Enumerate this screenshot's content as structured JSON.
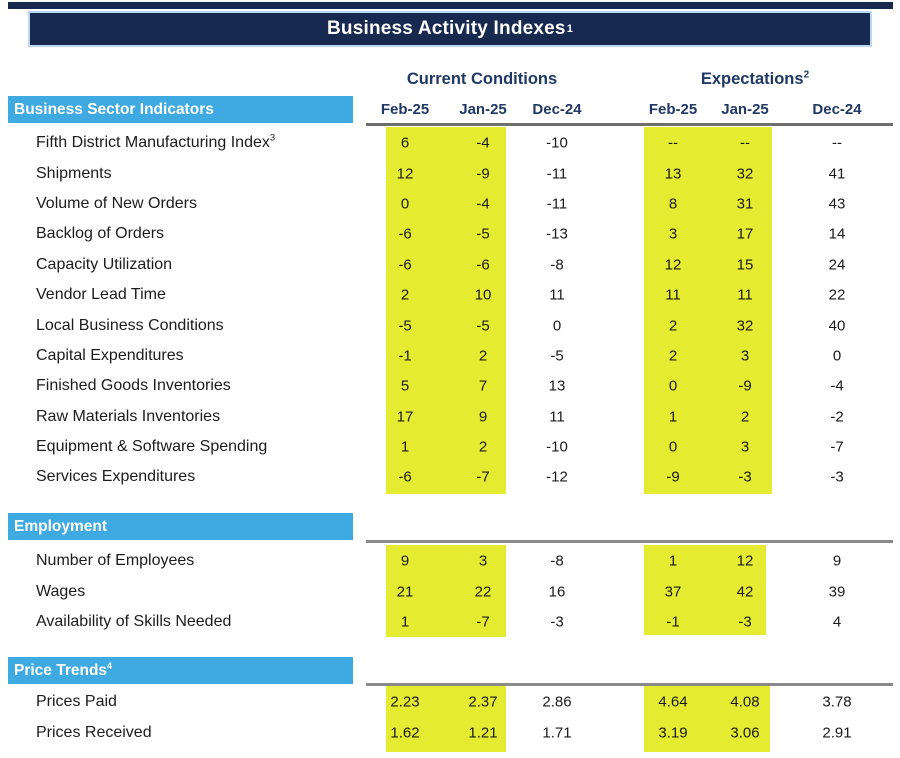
{
  "title": {
    "text": "Business Activity Indexes",
    "superscript": "1"
  },
  "column_groups": {
    "current": {
      "label": "Current Conditions",
      "superscript": ""
    },
    "expectations": {
      "label": "Expectations",
      "superscript": "2"
    }
  },
  "column_headers": [
    "Feb-25",
    "Jan-25",
    "Dec-24",
    "Feb-25",
    "Jan-25",
    "Dec-24"
  ],
  "colors": {
    "top_strip_bg": "#17294F",
    "title_bar_bg": "#17294F",
    "title_border": "#BDD7EE",
    "section_banner_bg": "#3FA9E1",
    "header_text": "#1F3864",
    "highlight_yellow": "#E4EB30",
    "header_rule": "#6E6E6E",
    "section_rule": "#8A8A8A"
  },
  "table": {
    "sections": [
      {
        "label": "Business Sector Indicators",
        "superscript": "",
        "rows": [
          {
            "label": "Fifth District Manufacturing Index",
            "superscript": "3",
            "values": [
              "6",
              "-4",
              "-10",
              "--",
              "--",
              "--"
            ]
          },
          {
            "label": "Shipments",
            "values": [
              "12",
              "-9",
              "-11",
              "13",
              "32",
              "41"
            ]
          },
          {
            "label": "Volume of New Orders",
            "values": [
              "0",
              "-4",
              "-11",
              "8",
              "31",
              "43"
            ]
          },
          {
            "label": "Backlog of Orders",
            "values": [
              "-6",
              "-5",
              "-13",
              "3",
              "17",
              "14"
            ]
          },
          {
            "label": "Capacity Utilization",
            "values": [
              "-6",
              "-6",
              "-8",
              "12",
              "15",
              "24"
            ]
          },
          {
            "label": "Vendor Lead Time",
            "values": [
              "2",
              "10",
              "11",
              "11",
              "11",
              "22"
            ]
          },
          {
            "label": "Local Business Conditions",
            "values": [
              "-5",
              "-5",
              "0",
              "2",
              "32",
              "40"
            ]
          },
          {
            "label": "Capital Expenditures",
            "values": [
              "-1",
              "2",
              "-5",
              "2",
              "3",
              "0"
            ]
          },
          {
            "label": "Finished Goods Inventories",
            "values": [
              "5",
              "7",
              "13",
              "0",
              "-9",
              "-4"
            ]
          },
          {
            "label": "Raw Materials Inventories",
            "values": [
              "17",
              "9",
              "11",
              "1",
              "2",
              "-2"
            ]
          },
          {
            "label": "Equipment & Software Spending",
            "values": [
              "1",
              "2",
              "-10",
              "0",
              "3",
              "-7"
            ]
          },
          {
            "label": "Services Expenditures",
            "values": [
              "-6",
              "-7",
              "-12",
              "-9",
              "-3",
              "-3"
            ]
          }
        ]
      },
      {
        "label": "Employment",
        "superscript": "",
        "rows": [
          {
            "label": "Number of Employees",
            "values": [
              "9",
              "3",
              "-8",
              "1",
              "12",
              "9"
            ]
          },
          {
            "label": "Wages",
            "values": [
              "21",
              "22",
              "16",
              "37",
              "42",
              "39"
            ]
          },
          {
            "label": "Availability of Skills Needed",
            "values": [
              "1",
              "-7",
              "-3",
              "-1",
              "-3",
              "4"
            ]
          }
        ]
      },
      {
        "label": "Price Trends",
        "superscript": "4",
        "rows": [
          {
            "label": "Prices Paid",
            "values": [
              "2.23",
              "2.37",
              "2.86",
              "4.64",
              "4.08",
              "3.78"
            ]
          },
          {
            "label": "Prices Received",
            "values": [
              "1.62",
              "1.21",
              "1.71",
              "3.19",
              "3.06",
              "2.91"
            ]
          }
        ]
      }
    ]
  }
}
